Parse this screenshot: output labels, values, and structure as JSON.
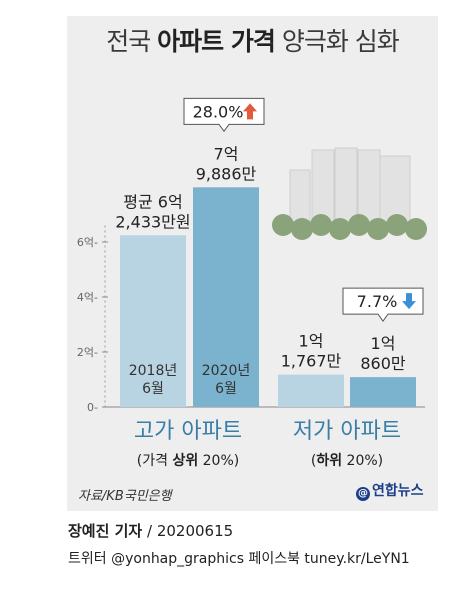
{
  "title": {
    "plain_1": "전국 ",
    "bold": "아파트 가격",
    "plain_2": " 양극화 심화"
  },
  "chart_data": {
    "type": "bar",
    "yaxis": {
      "ticks": [
        0,
        2,
        4,
        6
      ],
      "tick_labels": [
        "0",
        "2억",
        "4억",
        "6억"
      ]
    },
    "groups": [
      {
        "name": "고가 아파트",
        "subtitle_1": "(가격 ",
        "subtitle_bold": "상위",
        "subtitle_2": " 20%)",
        "bars": [
          {
            "period": "2018년\n6월",
            "value": 6.2433,
            "label_1": "평균 6억",
            "label_2": "2,433만원",
            "color": "#b8d3e2"
          },
          {
            "period": "2020년\n6월",
            "value": 7.9886,
            "label_1": "7억",
            "label_2": "9,886만",
            "color": "#7bb2cd"
          }
        ],
        "change": {
          "text": "28.0%",
          "direction": "up",
          "color": "#e25b3c"
        }
      },
      {
        "name": "저가 아파트",
        "subtitle_1": "(",
        "subtitle_bold": "하위",
        "subtitle_2": " 20%)",
        "bars": [
          {
            "value": 1.1767,
            "label_1": "1억",
            "label_2": "1,767만",
            "color": "#b8d3e2"
          },
          {
            "value": 1.086,
            "label_1": "1억",
            "label_2": "860만",
            "color": "#7bb2cd"
          }
        ],
        "change": {
          "text": "7.7%",
          "direction": "down",
          "color": "#3b8fd4"
        }
      }
    ]
  },
  "source": "자료/KB국민은행",
  "logo": "연합뉴스",
  "credit": {
    "author": "장예진 기자",
    "date": " / 20200615"
  },
  "social": "트위터 @yonhap_graphics  페이스북 tuney.kr/LeYN1"
}
